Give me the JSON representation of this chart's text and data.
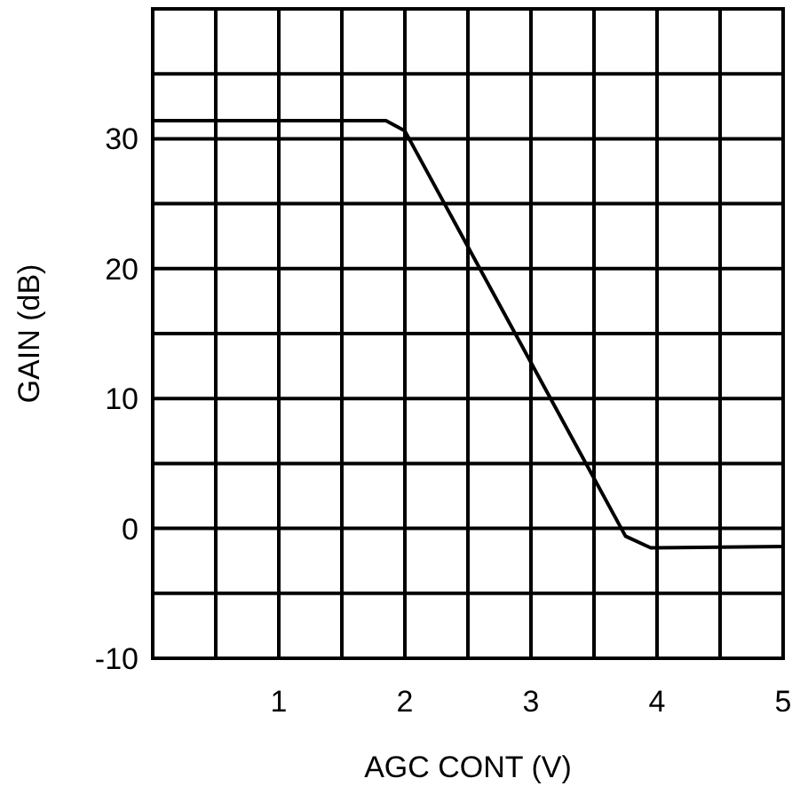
{
  "chart_data": {
    "type": "line",
    "xlabel": "AGC CONT (V)",
    "ylabel": "GAIN (dB)",
    "x": [
      0,
      1.85,
      2.0,
      3.75,
      3.95,
      5
    ],
    "series": [
      {
        "color": "#000000",
        "values": [
          31.4,
          31.4,
          30.6,
          -0.6,
          -1.5,
          -1.4
        ]
      }
    ],
    "xlim": [
      0,
      5
    ],
    "ylim": [
      -10,
      40
    ],
    "xticks": [
      {
        "value": 0.5,
        "label": null
      },
      1,
      {
        "value": 1.5,
        "label": null
      },
      2,
      {
        "value": 2.5,
        "label": null
      },
      3,
      {
        "value": 3.5,
        "label": null
      },
      4,
      {
        "value": 4.5,
        "label": null
      },
      5
    ],
    "yticks": [
      -10,
      {
        "value": -5,
        "label": null
      },
      0,
      {
        "value": 5,
        "label": null
      },
      10,
      {
        "value": 15,
        "label": null
      },
      20,
      {
        "value": 25,
        "label": null
      },
      30,
      {
        "value": 35,
        "label": null
      }
    ],
    "grid": true,
    "marker": "none",
    "line_style": "solid"
  }
}
